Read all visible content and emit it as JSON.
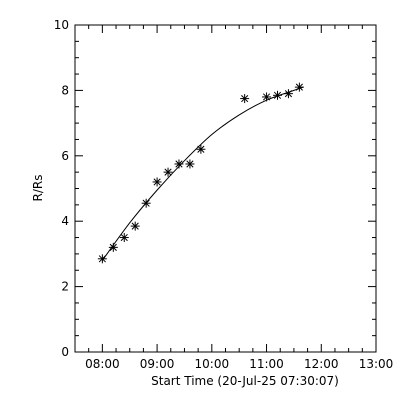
{
  "chart_data": {
    "type": "scatter",
    "xlabel": "Start Time (20-Jul-25 07:30:07)",
    "ylabel": "R/Rs",
    "x_ticks": [
      "08:00",
      "09:00",
      "10:00",
      "11:00",
      "12:00",
      "13:00"
    ],
    "y_ticks": [
      "0",
      "2",
      "4",
      "6",
      "8",
      "10"
    ],
    "xlim": [
      "07:30",
      "13:00"
    ],
    "ylim": [
      0,
      10
    ],
    "grid": false,
    "colors": {
      "axes": "#000000",
      "markers": "#000000",
      "fit_line": "#000000",
      "background": "#ffffff"
    },
    "series": [
      {
        "marker": "asterisk",
        "x": [
          "08:00",
          "08:12",
          "08:24",
          "08:36",
          "08:48",
          "09:00",
          "09:12",
          "09:24",
          "09:36",
          "09:48",
          "10:36",
          "11:00",
          "11:12",
          "11:24",
          "11:36"
        ],
        "y": [
          2.85,
          3.2,
          3.5,
          3.85,
          4.55,
          5.2,
          5.5,
          5.75,
          5.75,
          6.2,
          7.75,
          7.8,
          7.85,
          7.9,
          8.1
        ]
      }
    ],
    "fit": {
      "style": "line",
      "x": [
        "08:00",
        "08:30",
        "09:00",
        "09:30",
        "10:00",
        "10:30",
        "11:00",
        "11:30",
        "11:40"
      ],
      "y": [
        2.8,
        3.95,
        4.95,
        5.85,
        6.65,
        7.25,
        7.7,
        8.0,
        8.1
      ]
    }
  }
}
